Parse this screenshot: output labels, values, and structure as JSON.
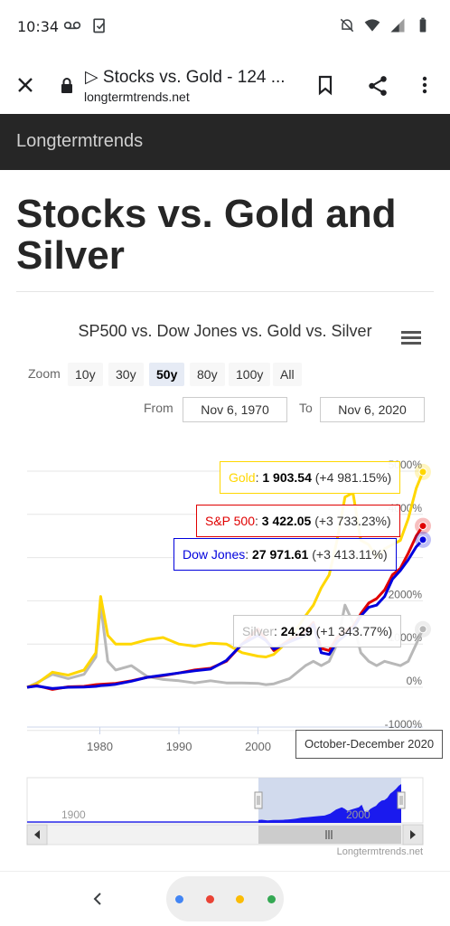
{
  "status_bar": {
    "time": "10:34"
  },
  "browser": {
    "tab_title": "▷ Stocks vs. Gold - 124 ...",
    "url": "longtermtrends.net"
  },
  "site": {
    "name": "Longtermtrends"
  },
  "page": {
    "title": "Stocks vs. Gold and Silver"
  },
  "chart": {
    "title": "SP500 vs. Dow Jones vs. Gold vs. Silver",
    "zoom_label": "Zoom",
    "zoom_buttons": [
      "10y",
      "30y",
      "50y",
      "80y",
      "100y",
      "All"
    ],
    "zoom_selected": "50y",
    "from_label": "From",
    "from_value": "Nov 6, 1970",
    "to_label": "To",
    "to_value": "Nov 6, 2020",
    "hover_period": "October-December 2020",
    "credit": "Longtermtrends.net",
    "navigator_labels": [
      "1900",
      "2000"
    ],
    "tooltips": {
      "gold": {
        "name": "Gold",
        "value": "1 903.54",
        "change": "(+4 981.15%)"
      },
      "sp500": {
        "name": "S&P 500",
        "value": "3 422.05",
        "change": "(+3 733.23%)"
      },
      "dow": {
        "name": "Dow Jones",
        "value": "27 971.61",
        "change": "(+3 413.11%)"
      },
      "silver": {
        "name": "Silver",
        "value": "24.29",
        "change": "(+1 343.77%)"
      }
    },
    "colors": {
      "gold": "#ffd700",
      "sp500": "#e00000",
      "dow": "#0000dd",
      "silver": "#b8b8b8"
    }
  },
  "chart_data": {
    "type": "line",
    "title": "SP500 vs. Dow Jones vs. Gold vs. Silver",
    "xlabel": "",
    "ylabel": "",
    "x_ticks": [
      "1980",
      "1990",
      "2000"
    ],
    "y_ticks": [
      "-1000%",
      "0%",
      "1000%",
      "2000%",
      "4000%",
      "5000%"
    ],
    "ylim": [
      -1000,
      5500
    ],
    "grid": true,
    "x": [
      1970.8,
      1972,
      1974,
      1976,
      1978,
      1979.5,
      1980.1,
      1981,
      1982,
      1984,
      1986,
      1988,
      1990,
      1992,
      1994,
      1996,
      1998,
      2000,
      2001,
      2002,
      2004,
      2006,
      2007,
      2008,
      2009,
      2010,
      2011,
      2012,
      2013,
      2014,
      2015,
      2016,
      2017,
      2018,
      2019,
      2020,
      2020.85
    ],
    "series": [
      {
        "name": "Gold",
        "values": [
          0,
          80,
          350,
          280,
          400,
          800,
          2100,
          1200,
          1000,
          1000,
          1100,
          1150,
          1000,
          950,
          1020,
          1000,
          800,
          720,
          700,
          760,
          1100,
          1650,
          1900,
          2300,
          2600,
          3400,
          4400,
          4500,
          3400,
          3300,
          3000,
          3200,
          3300,
          3400,
          3900,
          4600,
          4981
        ]
      },
      {
        "name": "S&P 500",
        "values": [
          0,
          40,
          -50,
          10,
          20,
          60,
          70,
          80,
          90,
          150,
          230,
          270,
          330,
          400,
          440,
          600,
          1000,
          1350,
          1100,
          850,
          1100,
          1300,
          1500,
          900,
          850,
          1150,
          1300,
          1400,
          1700,
          1950,
          2050,
          2250,
          2600,
          2750,
          3100,
          3500,
          3733
        ]
      },
      {
        "name": "Dow Jones",
        "values": [
          0,
          30,
          -30,
          0,
          5,
          20,
          40,
          50,
          70,
          140,
          230,
          280,
          330,
          380,
          420,
          620,
          1000,
          1200,
          1080,
          880,
          1050,
          1200,
          1450,
          800,
          760,
          1050,
          1200,
          1350,
          1650,
          1850,
          1900,
          2100,
          2500,
          2700,
          2950,
          3250,
          3413
        ]
      },
      {
        "name": "Silver",
        "values": [
          0,
          100,
          300,
          200,
          300,
          700,
          1900,
          600,
          400,
          500,
          250,
          180,
          150,
          100,
          150,
          100,
          100,
          90,
          60,
          80,
          200,
          500,
          600,
          500,
          600,
          1000,
          1900,
          1500,
          800,
          600,
          500,
          600,
          550,
          500,
          600,
          1000,
          1344
        ]
      }
    ]
  }
}
